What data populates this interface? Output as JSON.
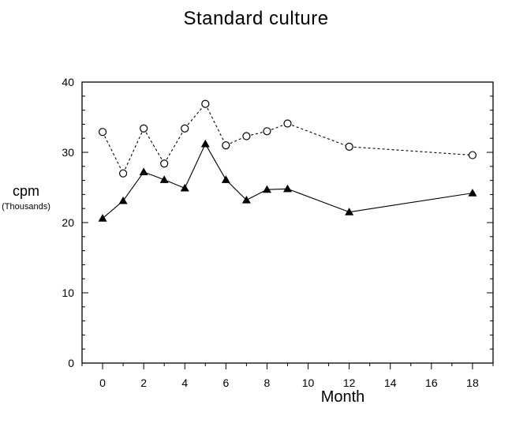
{
  "chart_data": {
    "type": "line",
    "title": "Standard culture",
    "xlabel": "Month",
    "ylabel": "cpm",
    "ylabel_unit": "(Thousands)",
    "xlim": [
      -1,
      19
    ],
    "ylim": [
      0,
      40
    ],
    "x_ticks": [
      0,
      2,
      4,
      6,
      8,
      10,
      12,
      14,
      16,
      18
    ],
    "y_ticks": [
      0,
      10,
      20,
      30,
      40
    ],
    "grid": false,
    "series": [
      {
        "marker": "open-circle",
        "line_style": "dashed",
        "color": "#000000",
        "x": [
          0,
          1,
          2,
          3,
          4,
          5,
          6,
          7,
          8,
          9,
          12,
          18
        ],
        "y": [
          32.9,
          27.0,
          33.4,
          28.4,
          33.4,
          36.9,
          31.0,
          32.3,
          33.0,
          34.1,
          30.8,
          29.6
        ]
      },
      {
        "marker": "filled-triangle",
        "line_style": "solid",
        "color": "#000000",
        "x": [
          0,
          1,
          2,
          3,
          4,
          5,
          6,
          7,
          8,
          9,
          12,
          18
        ],
        "y": [
          20.6,
          23.1,
          27.2,
          26.1,
          24.9,
          31.2,
          26.1,
          23.2,
          24.7,
          24.8,
          21.5,
          24.2
        ]
      }
    ]
  }
}
